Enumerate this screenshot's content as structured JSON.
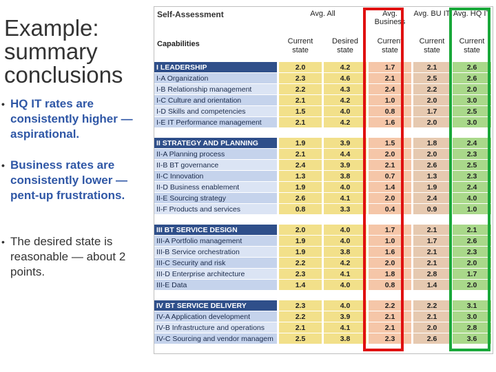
{
  "slide": {
    "title": "Example: summary conclusions",
    "bullets": [
      "HQ IT rates are consistently higher — aspirational.",
      "Business rates are consistently lower — pent-up frustrations.",
      "The desired state is reasonable — about 2 points."
    ]
  },
  "table": {
    "title": "Self-Assessment",
    "group_headers": [
      "Avg. All",
      "Avg. Business",
      "Avg. BU IT",
      "Avg. HQ IT"
    ],
    "capabilities_label": "Capabilities",
    "subheaders": [
      "Current state",
      "Desired state",
      "Current state",
      "Current state",
      "Current state"
    ],
    "rows": [
      {
        "label": "I LEADERSHIP",
        "type": "head",
        "values": [
          "2.0",
          "4.2",
          "1.7",
          "2.1",
          "2.6"
        ]
      },
      {
        "label": "I-A Organization",
        "type": "item",
        "values": [
          "2.3",
          "4.6",
          "2.1",
          "2.5",
          "2.6"
        ]
      },
      {
        "label": "I-B Relationship management",
        "type": "item",
        "values": [
          "2.2",
          "4.3",
          "2.4",
          "2.2",
          "2.0"
        ]
      },
      {
        "label": "I-C Culture and orientation",
        "type": "item",
        "values": [
          "2.1",
          "4.2",
          "1.0",
          "2.0",
          "3.0"
        ]
      },
      {
        "label": "I-D Skills and competencies",
        "type": "item",
        "values": [
          "1.5",
          "4.0",
          "0.8",
          "1.7",
          "2.5"
        ]
      },
      {
        "label": "I-E IT Performance management",
        "type": "item",
        "values": [
          "2.1",
          "4.2",
          "1.6",
          "2.0",
          "3.0"
        ]
      },
      {
        "label": "II STRATEGY AND PLANNING",
        "type": "head",
        "values": [
          "1.9",
          "3.9",
          "1.5",
          "1.8",
          "2.4"
        ]
      },
      {
        "label": "II-A Planning process",
        "type": "item",
        "values": [
          "2.1",
          "4.4",
          "2.0",
          "2.0",
          "2.3"
        ]
      },
      {
        "label": "II-B BT governance",
        "type": "item",
        "values": [
          "2.4",
          "3.9",
          "2.1",
          "2.6",
          "2.5"
        ]
      },
      {
        "label": "II-C Innovation",
        "type": "item",
        "values": [
          "1.3",
          "3.8",
          "0.7",
          "1.3",
          "2.3"
        ]
      },
      {
        "label": "II-D Business enablement",
        "type": "item",
        "values": [
          "1.9",
          "4.0",
          "1.4",
          "1.9",
          "2.4"
        ]
      },
      {
        "label": "II-E Sourcing strategy",
        "type": "item",
        "values": [
          "2.6",
          "4.1",
          "2.0",
          "2.4",
          "4.0"
        ]
      },
      {
        "label": "II-F Products and services",
        "type": "item",
        "values": [
          "0.8",
          "3.3",
          "0.4",
          "0.9",
          "1.0"
        ]
      },
      {
        "label": "III BT SERVICE DESIGN",
        "type": "head",
        "values": [
          "2.0",
          "4.0",
          "1.7",
          "2.1",
          "2.1"
        ]
      },
      {
        "label": "III-A Portfolio management",
        "type": "item",
        "values": [
          "1.9",
          "4.0",
          "1.0",
          "1.7",
          "2.6"
        ]
      },
      {
        "label": "III-B Service orchestration",
        "type": "item",
        "values": [
          "1.9",
          "3.8",
          "1.6",
          "2.1",
          "2.3"
        ]
      },
      {
        "label": "III-C Security and risk",
        "type": "item",
        "values": [
          "2.2",
          "4.2",
          "2.0",
          "2.1",
          "2.0"
        ]
      },
      {
        "label": "III-D Enterprise architecture",
        "type": "item",
        "values": [
          "2.3",
          "4.1",
          "1.8",
          "2.8",
          "1.7"
        ]
      },
      {
        "label": "III-E Data",
        "type": "item",
        "values": [
          "1.4",
          "4.0",
          "0.8",
          "1.4",
          "2.0"
        ]
      },
      {
        "label": "IV BT SERVICE DELIVERY",
        "type": "head",
        "values": [
          "2.3",
          "4.0",
          "2.2",
          "2.2",
          "3.1"
        ]
      },
      {
        "label": "IV-A Application development",
        "type": "item",
        "values": [
          "2.2",
          "3.9",
          "2.1",
          "2.1",
          "3.0"
        ]
      },
      {
        "label": "IV-B Infrastructure and operations",
        "type": "item",
        "values": [
          "2.1",
          "4.1",
          "2.1",
          "2.0",
          "2.8"
        ]
      },
      {
        "label": "IV-C Sourcing and vendor managem",
        "type": "item",
        "values": [
          "2.5",
          "3.8",
          "2.3",
          "2.6",
          "3.6"
        ]
      }
    ]
  },
  "colors": {
    "title": "#333333",
    "bullet_emphasis": "#2f57a6",
    "section_header": "#2f4f8a",
    "highlight_business": "#e01010",
    "highlight_hq_it": "#19a83a"
  }
}
